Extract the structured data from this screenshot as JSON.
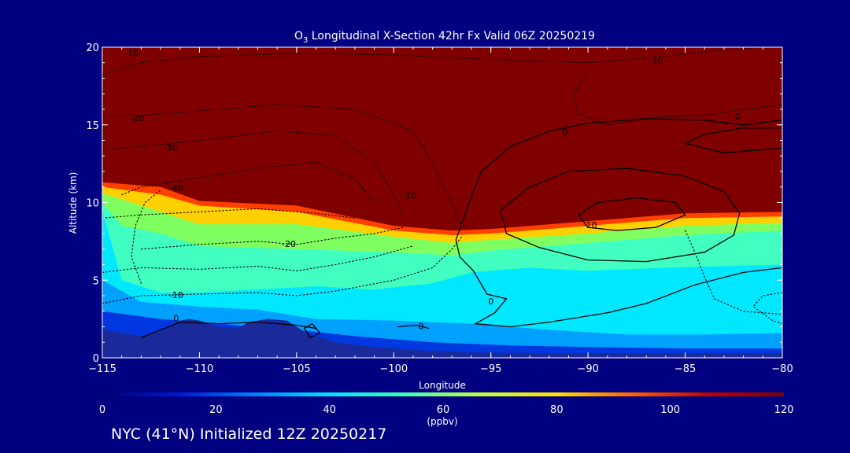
{
  "chart_data": {
    "type": "heatmap",
    "title_prefix": "O",
    "title_subscript": "3",
    "title_rest": " Longitudinal X-Section 42hr  Fx Valid 06Z 20250219",
    "xlabel": "Longitude",
    "ylabel": "Altitude (km)",
    "xlim": [
      -115,
      -80
    ],
    "ylim": [
      0,
      20
    ],
    "x_ticks": [
      -115,
      -110,
      -105,
      -100,
      -95,
      -90,
      -85,
      -80
    ],
    "x_tick_labels": [
      "−115",
      "−110",
      "−105",
      "−100",
      "−95",
      "−90",
      "−85",
      "−80"
    ],
    "y_ticks": [
      0,
      5,
      10,
      15,
      20
    ],
    "y_tick_labels": [
      "0",
      "5",
      "10",
      "15",
      "20"
    ],
    "colorbar": {
      "min": 0,
      "max": 120,
      "ticks": [
        0,
        20,
        40,
        60,
        80,
        100,
        120
      ],
      "tick_labels": [
        "0",
        "20",
        "40",
        "60",
        "80",
        "100",
        "120"
      ],
      "unit": "(ppbv)",
      "colors": [
        "#000070",
        "#0018d0",
        "#0080ff",
        "#00e0ff",
        "#40ffb0",
        "#c0ff40",
        "#ffe000",
        "#ff6000",
        "#c00000",
        "#800000"
      ]
    },
    "ozone_layers": [
      {
        "ppbv": 120,
        "color": "#800000",
        "top": [
          [
            -115,
            20
          ],
          [
            -80,
            20
          ]
        ],
        "bottom": [
          [
            -115,
            11.3
          ],
          [
            -112,
            11
          ],
          [
            -110,
            10.1
          ],
          [
            -105,
            9.8
          ],
          [
            -100,
            8.5
          ],
          [
            -97,
            8.2
          ],
          [
            -95,
            8.3
          ],
          [
            -90,
            8.8
          ],
          [
            -85,
            9.3
          ],
          [
            -80,
            9.4
          ]
        ]
      },
      {
        "ppbv": 90,
        "color": "#ff4000",
        "bottom": [
          [
            -115,
            11
          ],
          [
            -112,
            10.5
          ],
          [
            -110,
            9.8
          ],
          [
            -105,
            9.4
          ],
          [
            -100,
            8.2
          ],
          [
            -97,
            7.9
          ],
          [
            -95,
            8.0
          ],
          [
            -90,
            8.5
          ],
          [
            -85,
            9.0
          ],
          [
            -80,
            9.1
          ]
        ]
      },
      {
        "ppbv": 75,
        "color": "#ffd000",
        "bottom": [
          [
            -115,
            10.6
          ],
          [
            -113,
            9.8
          ],
          [
            -110,
            8.6
          ],
          [
            -105,
            8.6
          ],
          [
            -100,
            7.8
          ],
          [
            -97,
            7.4
          ],
          [
            -95,
            7.6
          ],
          [
            -90,
            8.0
          ],
          [
            -85,
            8.5
          ],
          [
            -80,
            8.7
          ]
        ]
      },
      {
        "ppbv": 60,
        "color": "#80ff60",
        "bottom": [
          [
            -115,
            10.0
          ],
          [
            -114,
            8.5
          ],
          [
            -112,
            8.0
          ],
          [
            -110,
            7.2
          ],
          [
            -105,
            7.0
          ],
          [
            -100,
            6.8
          ],
          [
            -97,
            6.6
          ],
          [
            -95,
            6.9
          ],
          [
            -90,
            7.4
          ],
          [
            -85,
            7.9
          ],
          [
            -80,
            8.2
          ]
        ]
      },
      {
        "ppbv": 50,
        "color": "#40ffc0",
        "bottom": [
          [
            -115,
            9.5
          ],
          [
            -114,
            5.0
          ],
          [
            -112,
            4.2
          ],
          [
            -110,
            4.2
          ],
          [
            -107,
            4.4
          ],
          [
            -104,
            4.6
          ],
          [
            -101,
            4.4
          ],
          [
            -98,
            4.8
          ],
          [
            -96,
            5.5
          ],
          [
            -93,
            5.8
          ],
          [
            -90,
            5.6
          ],
          [
            -86,
            5.8
          ],
          [
            -80,
            6.0
          ]
        ]
      },
      {
        "ppbv": 40,
        "color": "#00e8ff",
        "bottom": [
          [
            -115,
            5.0
          ],
          [
            -113,
            3.6
          ],
          [
            -110,
            3.3
          ],
          [
            -107,
            3.1
          ],
          [
            -104,
            2.5
          ],
          [
            -100,
            2.4
          ],
          [
            -96,
            2.2
          ],
          [
            -92,
            1.8
          ],
          [
            -88,
            1.5
          ],
          [
            -84,
            1.5
          ],
          [
            -80,
            1.6
          ]
        ]
      },
      {
        "ppbv": 30,
        "color": "#00a0ff",
        "bottom": [
          [
            -115,
            3.0
          ],
          [
            -112,
            2.5
          ],
          [
            -110,
            2.3
          ],
          [
            -105,
            1.8
          ],
          [
            -102,
            1.4
          ],
          [
            -98,
            1.0
          ],
          [
            -94,
            0.8
          ],
          [
            -90,
            0.7
          ],
          [
            -85,
            0.6
          ],
          [
            -80,
            0.6
          ]
        ]
      },
      {
        "ppbv": 20,
        "color": "#0038e0",
        "bottom": [
          [
            -105,
            1.6
          ],
          [
            -102,
            1.0
          ],
          [
            -98,
            0.6
          ],
          [
            -94,
            0.4
          ],
          [
            -88,
            0.3
          ],
          [
            -80,
            0.3
          ]
        ]
      }
    ],
    "terrain": [
      [
        -115,
        1.9
      ],
      [
        -114,
        1.6
      ],
      [
        -113,
        1.4
      ],
      [
        -112,
        1.7
      ],
      [
        -111,
        2.4
      ],
      [
        -110.5,
        2.5
      ],
      [
        -110,
        2.4
      ],
      [
        -109,
        2.0
      ],
      [
        -108,
        1.9
      ],
      [
        -107.5,
        2.3
      ],
      [
        -106.5,
        2.5
      ],
      [
        -105.5,
        2.4
      ],
      [
        -104.5,
        1.6
      ],
      [
        -103,
        1.0
      ],
      [
        -101,
        0.7
      ],
      [
        -99,
        0.5
      ],
      [
        -96,
        0.35
      ],
      [
        -92,
        0.3
      ],
      [
        -88,
        0.3
      ],
      [
        -84,
        0.3
      ],
      [
        -80,
        0.3
      ]
    ],
    "contours_dashed": [
      {
        "level": "-10",
        "points": [
          [
            -115,
            18.2
          ],
          [
            -113,
            19.0
          ],
          [
            -110,
            19.4
          ],
          [
            -105,
            19.6
          ],
          [
            -100,
            19.5
          ],
          [
            -95,
            19.2
          ],
          [
            -90,
            19.0
          ],
          [
            -87,
            19.3
          ],
          [
            -84,
            19.7
          ],
          [
            -81,
            20
          ]
        ]
      },
      {
        "level": "-20",
        "points": [
          [
            -115,
            15.6
          ],
          [
            -113,
            15.6
          ],
          [
            -110,
            15.9
          ],
          [
            -106,
            16.3
          ],
          [
            -102,
            16.0
          ],
          [
            -99,
            14.6
          ],
          [
            -98,
            12.5
          ],
          [
            -97,
            10.0
          ],
          [
            -96.5,
            8.3
          ]
        ]
      },
      {
        "level": "-30",
        "points": [
          [
            -115,
            13.4
          ],
          [
            -113,
            13.6
          ],
          [
            -110,
            14.0
          ],
          [
            -106,
            14.6
          ],
          [
            -103,
            14.3
          ],
          [
            -101,
            12.6
          ],
          [
            -100,
            10.5
          ],
          [
            -99.5,
            9.0
          ]
        ]
      },
      {
        "level": "-40",
        "points": [
          [
            -114,
            10.5
          ],
          [
            -113,
            11.0
          ],
          [
            -110,
            11.6
          ],
          [
            -107,
            12.2
          ],
          [
            -104,
            12.6
          ],
          [
            -102,
            11.5
          ],
          [
            -101,
            10.0
          ]
        ]
      },
      {
        "level": "-20",
        "points": [
          [
            -113,
            7.0
          ],
          [
            -110,
            7.3
          ],
          [
            -107,
            7.5
          ],
          [
            -105,
            7.3
          ],
          [
            -103,
            7.7
          ],
          [
            -101,
            8.0
          ],
          [
            -99.5,
            8.4
          ]
        ]
      },
      {
        "level": "-10",
        "points": [
          [
            -115,
            3.5
          ],
          [
            -113,
            4.0
          ],
          [
            -110,
            4.1
          ],
          [
            -107,
            4.2
          ],
          [
            -105,
            4.0
          ],
          [
            -103,
            4.3
          ],
          [
            -100,
            5.0
          ],
          [
            -98,
            5.8
          ],
          [
            -97,
            7.0
          ],
          [
            -96.5,
            7.8
          ]
        ]
      },
      {
        "level": "",
        "points": [
          [
            -115,
            5.5
          ],
          [
            -113,
            5.8
          ],
          [
            -110,
            5.7
          ],
          [
            -107,
            5.9
          ],
          [
            -105,
            5.6
          ],
          [
            -103,
            6.0
          ],
          [
            -101,
            6.5
          ],
          [
            -99,
            7.2
          ]
        ]
      },
      {
        "level": "",
        "points": [
          [
            -115,
            9.0
          ],
          [
            -113,
            9.2
          ],
          [
            -110,
            9.4
          ],
          [
            -107,
            9.6
          ],
          [
            -104,
            9.3
          ],
          [
            -102,
            9.0
          ]
        ]
      },
      {
        "level": "",
        "points": [
          [
            -113,
            4.8
          ],
          [
            -113.5,
            6.5
          ],
          [
            -113.3,
            8.5
          ],
          [
            -112.8,
            10.0
          ],
          [
            -112,
            10.8
          ]
        ]
      },
      {
        "level": "",
        "points": [
          [
            -90,
            18.3
          ],
          [
            -90.8,
            17.0
          ],
          [
            -90.5,
            15.7
          ],
          [
            -89,
            15.0
          ],
          [
            -86.5,
            15.5
          ],
          [
            -84,
            15.6
          ],
          [
            -82,
            16.0
          ],
          [
            -80,
            16.3
          ]
        ]
      },
      {
        "level": "",
        "points": [
          [
            -85,
            8.2
          ],
          [
            -84.5,
            6.8
          ],
          [
            -84,
            5.2
          ],
          [
            -83.5,
            3.8
          ],
          [
            -82,
            3.0
          ],
          [
            -80,
            2.8
          ]
        ]
      },
      {
        "level": "",
        "points": [
          [
            -80,
            4.2
          ],
          [
            -81,
            4.0
          ],
          [
            -81.5,
            3.3
          ],
          [
            -80.5,
            2.4
          ],
          [
            -80,
            2.2
          ]
        ]
      }
    ],
    "contours_solid": [
      {
        "level": "0",
        "points": [
          [
            -113,
            1.3
          ],
          [
            -111,
            2.3
          ],
          [
            -109,
            2.2
          ],
          [
            -107,
            2.3
          ],
          [
            -105,
            2.1
          ],
          [
            -104,
            1.9
          ]
        ]
      },
      {
        "level": "0",
        "points": [
          [
            -96,
            10.4
          ],
          [
            -95.5,
            12.0
          ],
          [
            -94,
            13.6
          ],
          [
            -92,
            14.6
          ],
          [
            -90,
            15.1
          ],
          [
            -87,
            15.4
          ],
          [
            -84,
            15.3
          ],
          [
            -82,
            15.0
          ],
          [
            -80,
            15.3
          ]
        ]
      },
      {
        "level": "0",
        "points": [
          [
            -96,
            10.4
          ],
          [
            -96.4,
            9.0
          ],
          [
            -96.8,
            7.6
          ],
          [
            -96.6,
            6.5
          ],
          [
            -95.9,
            5.6
          ],
          [
            -95.2,
            4.1
          ],
          [
            -94.2,
            3.8
          ],
          [
            -94.8,
            2.9
          ],
          [
            -95.8,
            2.2
          ],
          [
            -94,
            2.0
          ],
          [
            -92,
            2.3
          ],
          [
            -89,
            2.9
          ],
          [
            -87,
            3.5
          ],
          [
            -84.5,
            4.7
          ],
          [
            -82,
            5.5
          ],
          [
            -80,
            5.8
          ]
        ]
      },
      {
        "level": "-10",
        "points": [
          [
            -94.5,
            9.5
          ],
          [
            -93,
            11.0
          ],
          [
            -91,
            12.0
          ],
          [
            -88,
            12.2
          ],
          [
            -85,
            11.7
          ],
          [
            -83,
            10.7
          ],
          [
            -82.2,
            9.3
          ],
          [
            -82.5,
            7.9
          ],
          [
            -84,
            6.8
          ],
          [
            -87,
            6.2
          ],
          [
            -90,
            6.3
          ],
          [
            -92.5,
            7.1
          ],
          [
            -94.2,
            8.0
          ],
          [
            -94.5,
            9.5
          ]
        ]
      },
      {
        "level": "-10",
        "points": [
          [
            -90.5,
            9.2
          ],
          [
            -89.5,
            10.0
          ],
          [
            -87.5,
            10.3
          ],
          [
            -85.5,
            10.0
          ],
          [
            -85,
            9.2
          ],
          [
            -86.5,
            8.4
          ],
          [
            -88.5,
            8.2
          ],
          [
            -90,
            8.4
          ],
          [
            -90.5,
            9.2
          ]
        ]
      },
      {
        "level": "",
        "points": [
          [
            -85,
            13.8
          ],
          [
            -83,
            13.2
          ],
          [
            -81,
            13.4
          ],
          [
            -80,
            13.5
          ]
        ]
      },
      {
        "level": "",
        "points": [
          [
            -85,
            13.8
          ],
          [
            -84,
            14.4
          ],
          [
            -82,
            14.8
          ],
          [
            -80,
            14.8
          ]
        ]
      },
      {
        "level": "",
        "points": [
          [
            -104.2,
            2.2
          ],
          [
            -103.8,
            1.6
          ],
          [
            -104.3,
            1.3
          ],
          [
            -104.6,
            1.9
          ],
          [
            -104.2,
            2.2
          ]
        ]
      },
      {
        "level": "",
        "points": [
          [
            -99.8,
            2.0
          ],
          [
            -98.8,
            2.1
          ],
          [
            -98.2,
            1.9
          ]
        ]
      }
    ],
    "contour_labels": [
      {
        "text": "-10",
        "x": -113.5,
        "y": 19.6
      },
      {
        "text": "-10",
        "x": -86.5,
        "y": 19.1
      },
      {
        "text": "-20",
        "x": -113.2,
        "y": 15.4
      },
      {
        "text": "-30",
        "x": -111.5,
        "y": 13.5
      },
      {
        "text": "-40",
        "x": -111.2,
        "y": 10.9
      },
      {
        "text": "-10",
        "x": -99.2,
        "y": 10.4
      },
      {
        "text": "-20",
        "x": -105.4,
        "y": 7.3
      },
      {
        "text": "-10",
        "x": -111.2,
        "y": 4.0
      },
      {
        "text": "0",
        "x": -111.2,
        "y": 2.5
      },
      {
        "text": "0",
        "x": -91.2,
        "y": 14.5
      },
      {
        "text": "0",
        "x": -82.3,
        "y": 15.5
      },
      {
        "text": "-10",
        "x": -89.9,
        "y": 8.5
      },
      {
        "text": "0",
        "x": -95.0,
        "y": 3.6
      },
      {
        "text": "0",
        "x": -98.6,
        "y": 2.0
      }
    ]
  },
  "footer": "NYC (41°N) Initialized 12Z 20250217"
}
